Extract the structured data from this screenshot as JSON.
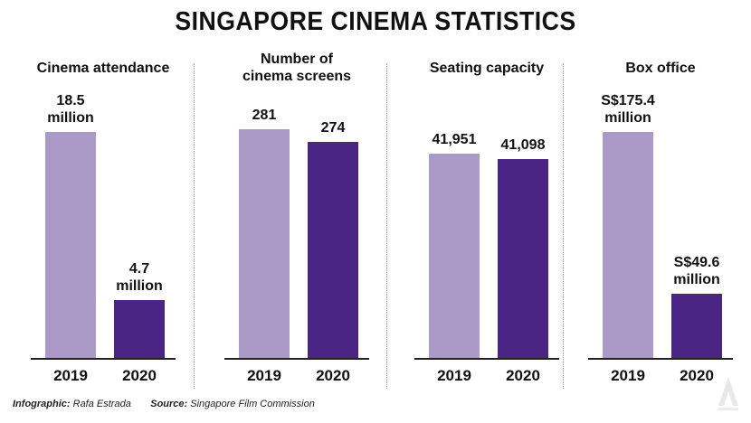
{
  "title": "SINGAPORE CINEMA STATISTICS",
  "colors": {
    "y2019": "#ab9ac8",
    "y2020": "#4a2583"
  },
  "chart_data": [
    {
      "type": "bar",
      "title": "Cinema attendance",
      "categories": [
        "2019",
        "2020"
      ],
      "values": [
        18.5,
        4.7
      ],
      "value_labels": [
        "18.5\nmillion",
        "4.7\nmillion"
      ]
    },
    {
      "type": "bar",
      "title": "Number of\ncinema screens",
      "categories": [
        "2019",
        "2020"
      ],
      "values": [
        281,
        274
      ],
      "value_labels": [
        "281",
        "274"
      ]
    },
    {
      "type": "bar",
      "title": "Seating capacity",
      "categories": [
        "2019",
        "2020"
      ],
      "values": [
        41951,
        41098
      ],
      "value_labels": [
        "41,951",
        "41,098"
      ]
    },
    {
      "type": "bar",
      "title": "Box office",
      "categories": [
        "2019",
        "2020"
      ],
      "values": [
        175.4,
        49.6
      ],
      "value_labels": [
        "S$175.4\nmillion",
        "S$49.6\nmillion"
      ]
    }
  ],
  "footer": {
    "infographic_label": "Infographic:",
    "infographic_value": "Rafa Estrada",
    "source_label": "Source:",
    "source_value": "Singapore Film Commission"
  },
  "logo_icon": "cna-logo-icon"
}
